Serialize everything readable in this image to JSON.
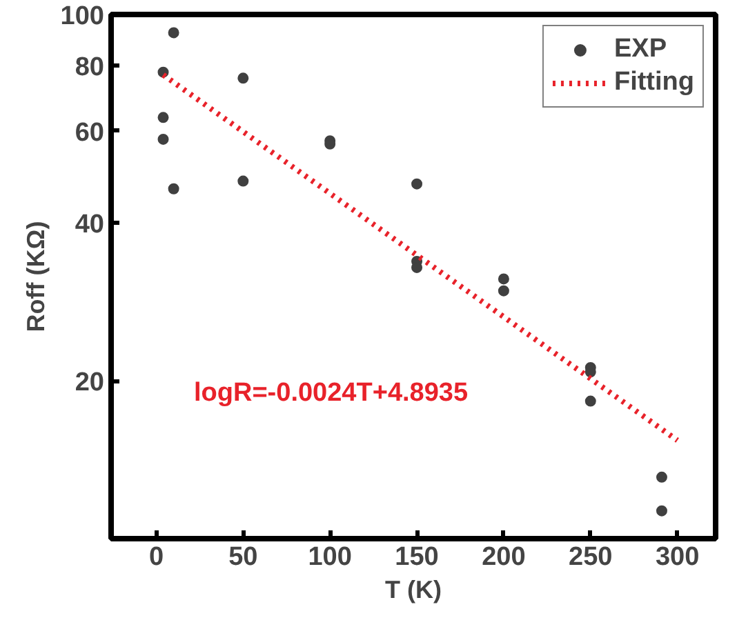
{
  "chart_data": {
    "type": "scatter",
    "xlabel": "T (K)",
    "ylabel": "Roff (KΩ)",
    "log": "y",
    "xlim": [
      -26,
      322
    ],
    "xticks": [
      0,
      50,
      100,
      150,
      200,
      250,
      300
    ],
    "ylim": [
      10,
      100
    ],
    "yticks": [
      20,
      40,
      60,
      80,
      100
    ],
    "grid": false,
    "legend": "top right",
    "marker": "circle",
    "series": [
      {
        "name": "EXP",
        "color": "#404040",
        "x": [
          4,
          4,
          4,
          10,
          10,
          50,
          50,
          100,
          100,
          150,
          150,
          150,
          200,
          200,
          250,
          250,
          250,
          291,
          291
        ],
        "values": [
          77.6,
          63.6,
          57.8,
          92.3,
          46.5,
          75.6,
          48.1,
          57.4,
          56.6,
          47.5,
          33.8,
          32.9,
          31.3,
          29.7,
          21.2,
          20.8,
          18.3,
          13.1,
          11.3
        ]
      },
      {
        "name": "Fitting",
        "type": "line",
        "color": "#e8222a",
        "line_style": "dotted",
        "marker": "none",
        "x": [
          4,
          300
        ],
        "values": [
          76.7,
          15.4
        ]
      }
    ],
    "annotations": [
      "logR=-0.0024T+4.8935"
    ]
  }
}
